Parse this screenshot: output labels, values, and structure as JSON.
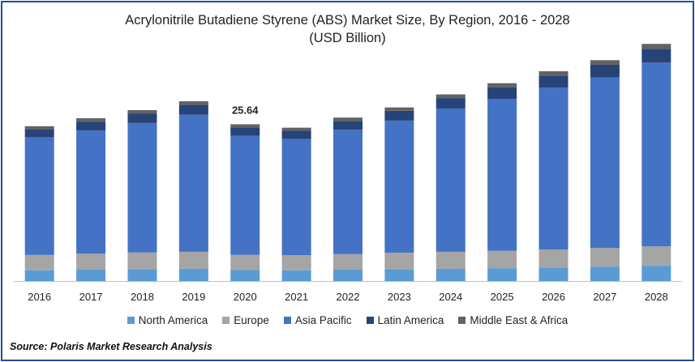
{
  "chart_data": {
    "type": "bar",
    "stacked": true,
    "title": "Acrylonitrile Butadiene Styrene (ABS) Market Size, By Region, 2016 - 2028",
    "subtitle": "(USD Billion)",
    "categories": [
      "2016",
      "2017",
      "2018",
      "2019",
      "2020",
      "2021",
      "2022",
      "2023",
      "2024",
      "2025",
      "2026",
      "2027",
      "2028"
    ],
    "series": [
      {
        "name": "North America",
        "color": "#5b9bd5",
        "values": [
          1.75,
          1.85,
          1.95,
          2.0,
          1.8,
          1.75,
          1.85,
          1.95,
          2.0,
          2.1,
          2.2,
          2.35,
          2.5
        ]
      },
      {
        "name": "Europe",
        "color": "#a5a5a5",
        "values": [
          2.52,
          2.62,
          2.72,
          2.78,
          2.49,
          2.47,
          2.56,
          2.69,
          2.78,
          2.85,
          2.94,
          3.07,
          3.16
        ]
      },
      {
        "name": "Asia Pacific",
        "color": "#4472c4",
        "values": [
          19.25,
          20.15,
          21.18,
          22.42,
          19.45,
          19.01,
          20.32,
          21.6,
          23.44,
          24.85,
          26.47,
          27.85,
          30.07
        ]
      },
      {
        "name": "Latin America",
        "color": "#264478",
        "values": [
          1.3,
          1.45,
          1.5,
          1.6,
          1.4,
          1.35,
          1.45,
          1.6,
          1.7,
          1.9,
          2.0,
          2.1,
          2.25
        ]
      },
      {
        "name": "Middle East & Africa",
        "color": "#636363",
        "values": [
          0.5,
          0.55,
          0.6,
          0.6,
          0.5,
          0.5,
          0.55,
          0.55,
          0.6,
          0.65,
          0.7,
          0.75,
          0.8
        ]
      }
    ],
    "data_labels": [
      {
        "category": "2020",
        "text": "25.64"
      }
    ],
    "ylim": [
      0,
      40
    ],
    "xlabel": "",
    "ylabel": "",
    "grid": false,
    "legend": "bottom"
  },
  "source": "Source: Polaris  Market Research Analysis"
}
